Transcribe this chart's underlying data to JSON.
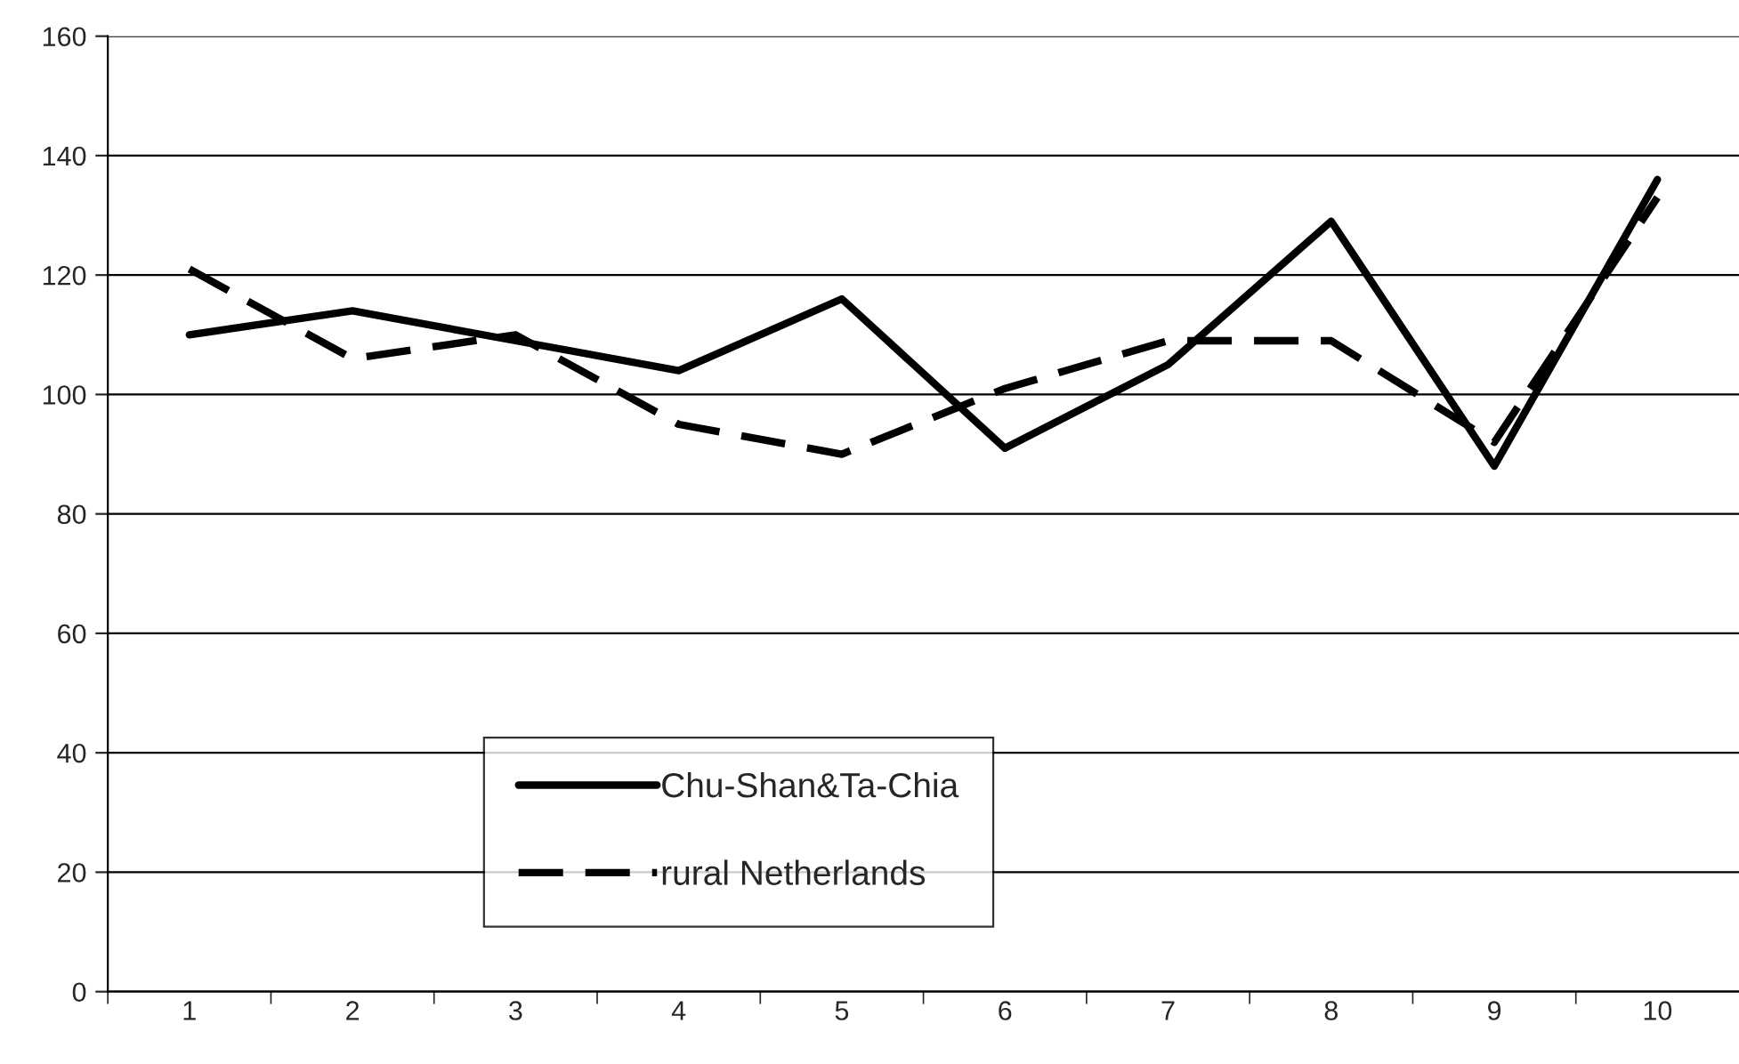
{
  "chart_data": {
    "type": "line",
    "categories": [
      "1",
      "2",
      "3",
      "4",
      "5",
      "6",
      "7",
      "8",
      "9",
      "10"
    ],
    "series": [
      {
        "name": "Chu-Shan&Ta-Chia",
        "color": "#000000",
        "line_style": "solid",
        "values": [
          110,
          114,
          109,
          104,
          116,
          91,
          105,
          129,
          88,
          136
        ]
      },
      {
        "name": "rural Netherlands",
        "color": "#000000",
        "line_style": "dashed",
        "values": [
          121,
          106,
          110,
          95,
          90,
          101,
          109,
          109,
          92,
          133
        ]
      }
    ],
    "ylim": [
      0,
      160
    ],
    "yticks": [
      0,
      20,
      40,
      60,
      80,
      100,
      120,
      140,
      160
    ],
    "grid": "y",
    "legend": "bottom left",
    "marker": "none"
  }
}
